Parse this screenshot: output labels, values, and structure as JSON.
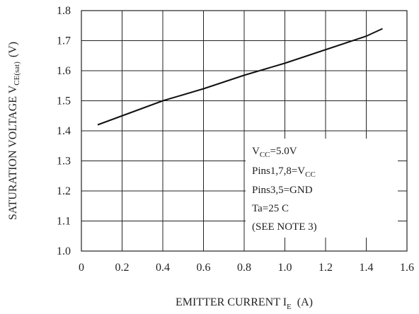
{
  "chart_data": {
    "type": "line",
    "xlabel": {
      "main": "EMITTER CURRENT I",
      "sub": "E",
      "unit": "(A)"
    },
    "ylabel": {
      "main": "SATURATION VOLTAGE V",
      "sub": "CE(sat)",
      "unit": "(V)"
    },
    "xlim": [
      0,
      1.6
    ],
    "ylim": [
      1.0,
      1.8
    ],
    "x_ticks": [
      "0",
      "0.2",
      "0.4",
      "0.6",
      "0.8",
      "1.0",
      "1.2",
      "1.4",
      "1.6"
    ],
    "y_ticks": [
      "1.0",
      "1.1",
      "1.2",
      "1.3",
      "1.4",
      "1.5",
      "1.6",
      "1.7",
      "1.8"
    ],
    "grid": true,
    "series": [
      {
        "color": "#111111",
        "x": [
          0.08,
          0.2,
          0.4,
          0.6,
          0.8,
          1.0,
          1.2,
          1.4,
          1.48
        ],
        "y": [
          1.42,
          1.45,
          1.5,
          1.54,
          1.585,
          1.625,
          1.67,
          1.715,
          1.74
        ]
      }
    ],
    "notes": [
      {
        "main": "V",
        "sub": "CC",
        "rest": "=5.0V"
      },
      {
        "main": "Pins1,7,8=V",
        "sub": "CC",
        "rest": ""
      },
      {
        "main": "Pins3,5=GND",
        "sub": "",
        "rest": ""
      },
      {
        "main": "Ta=25  C",
        "sub": "",
        "rest": ""
      },
      {
        "main": "(SEE NOTE 3)",
        "sub": "",
        "rest": ""
      }
    ]
  }
}
